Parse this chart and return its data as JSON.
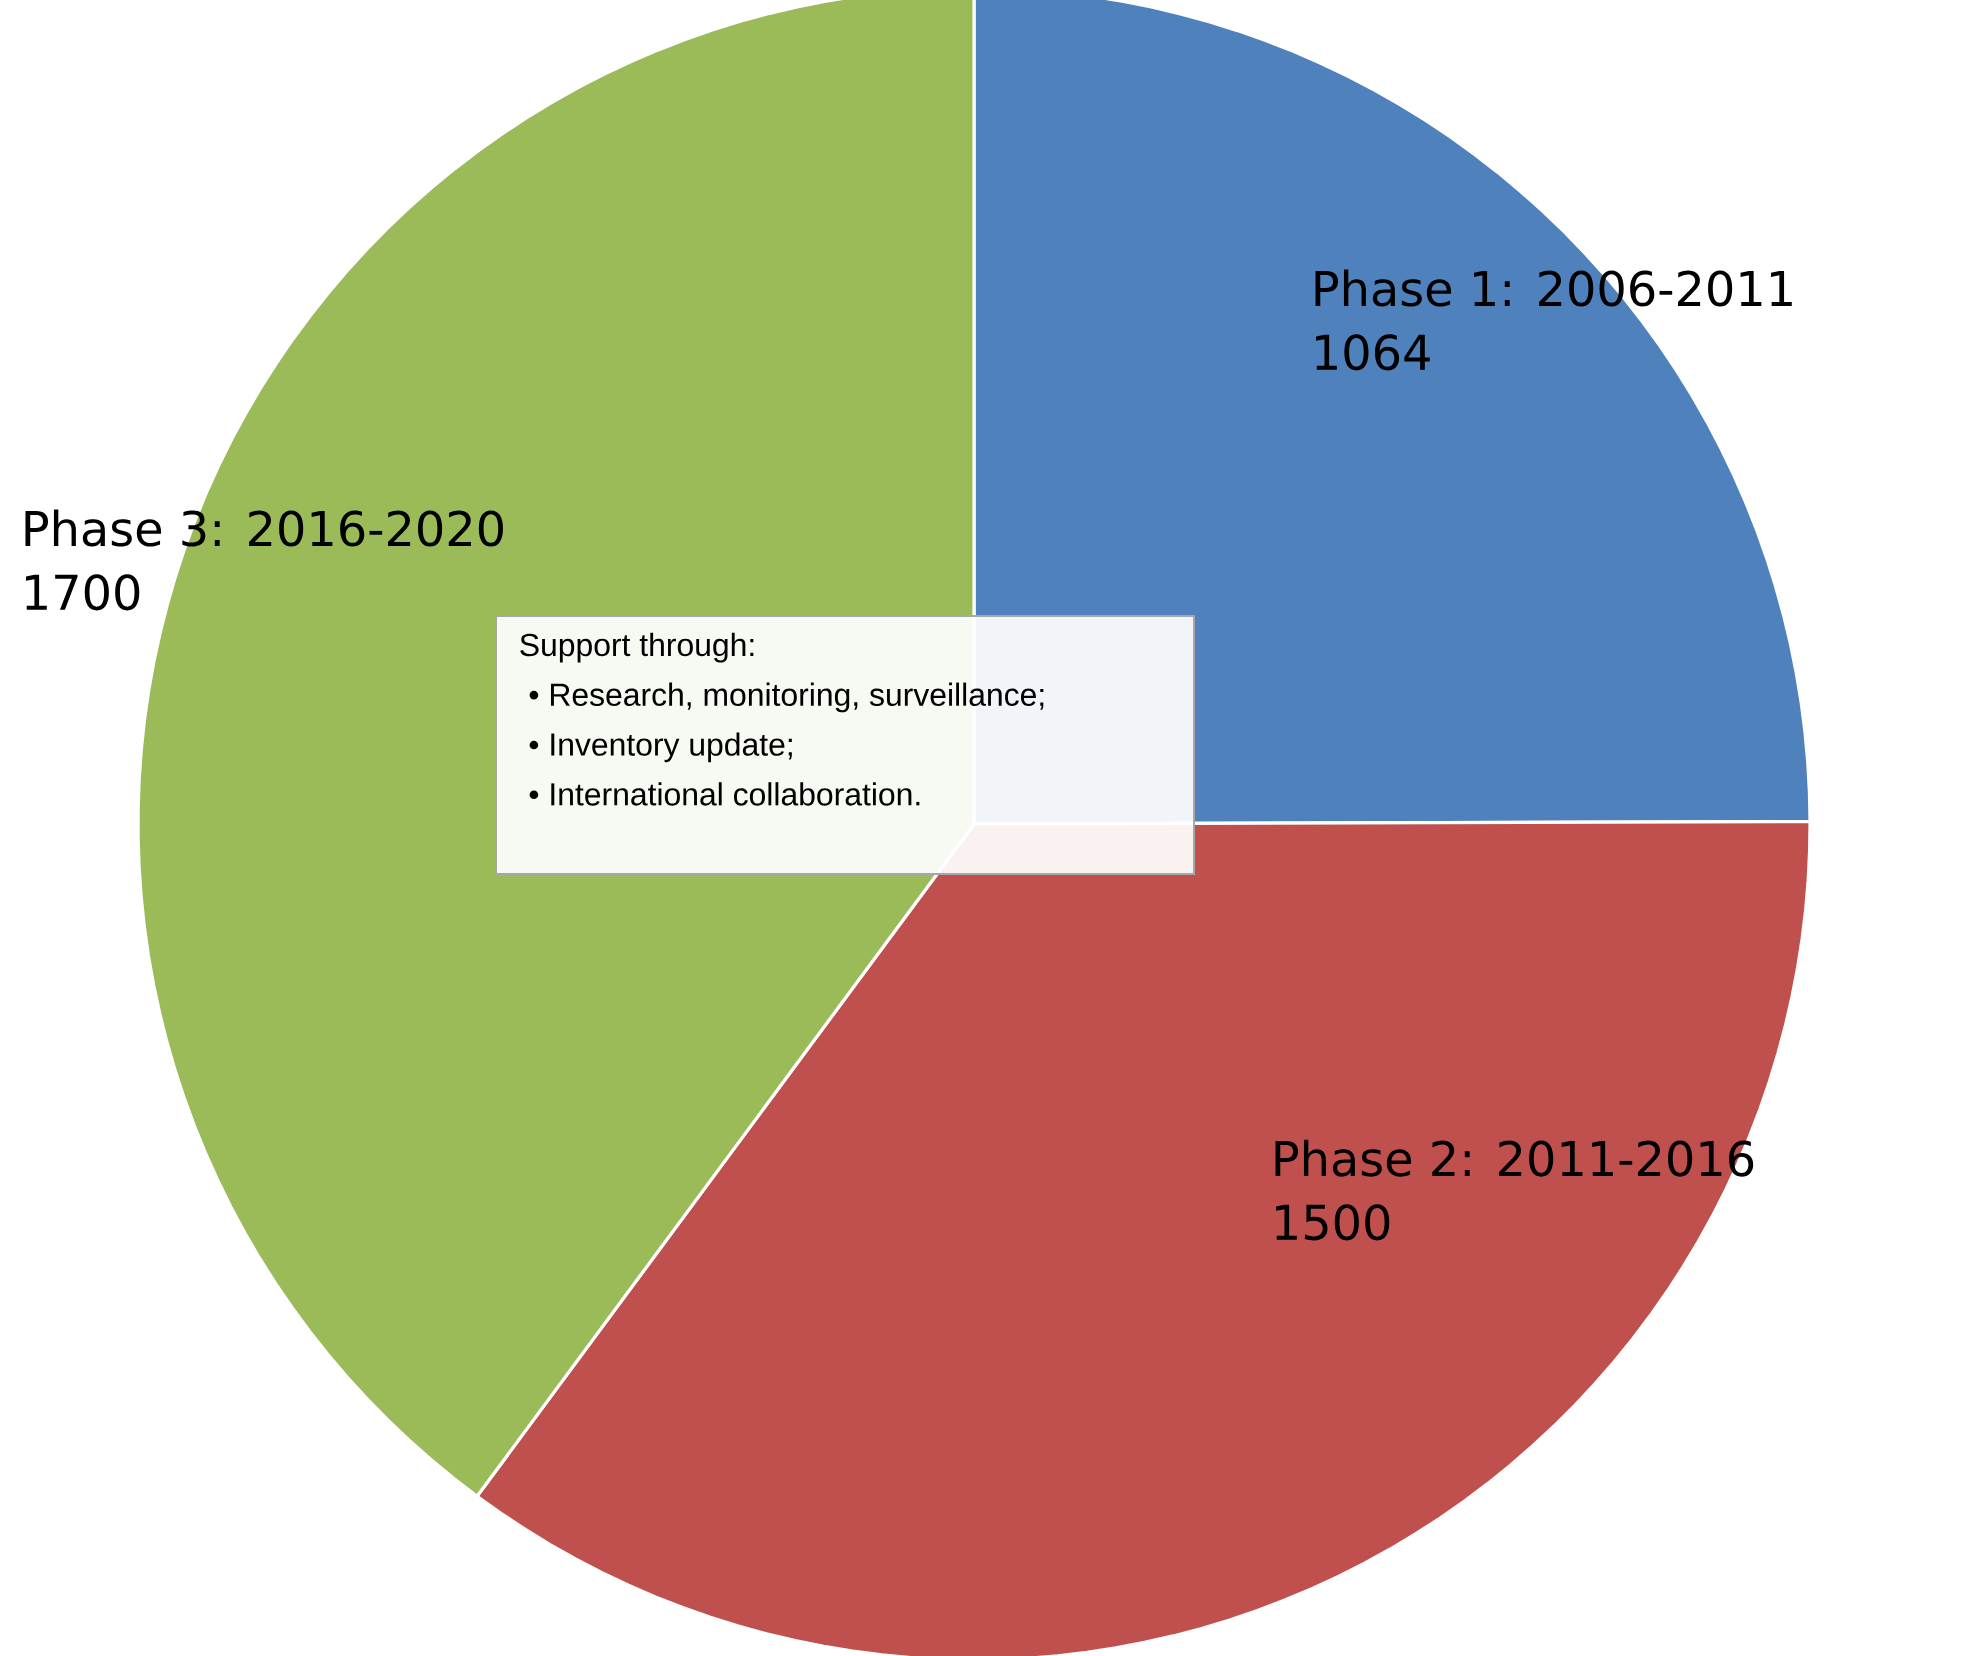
{
  "chart_data": {
    "type": "pie",
    "categories": [
      "Phase 1: 2006-2011",
      "Phase 2:  2011-2016",
      "Phase 3: 2016-2020"
    ],
    "values": [
      1064,
      1500,
      1700
    ],
    "colors": [
      "#4f81bd",
      "#c0504d",
      "#9bbb59"
    ],
    "data_labels": true,
    "annotations": [
      "Support through:",
      "•   Research, monitoring, surveillance;",
      "•   Inventory update;",
      "•   International collaboration."
    ]
  }
}
